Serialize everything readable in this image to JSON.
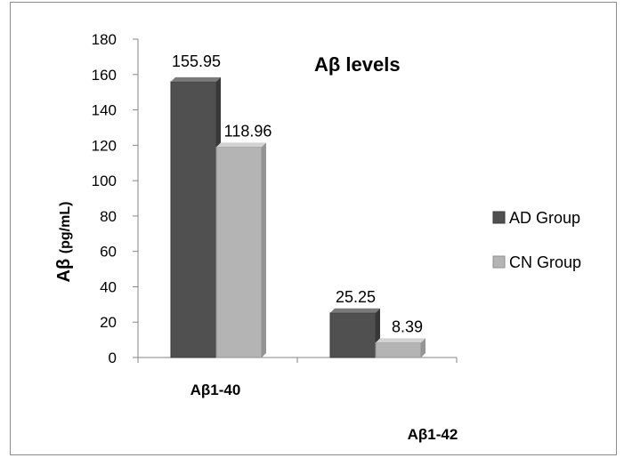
{
  "chart_data": {
    "type": "bar",
    "title": "Aβ levels",
    "ylabel_main": "Aβ",
    "ylabel_unit": "(pg/mL)",
    "xlabel": "",
    "categories": [
      "Aβ1-40",
      "Aβ1-42"
    ],
    "ylim": [
      0,
      180
    ],
    "yticks": [
      0,
      20,
      40,
      60,
      80,
      100,
      120,
      140,
      160,
      180
    ],
    "legend_position": "right",
    "series": [
      {
        "name": "AD Group",
        "values": [
          155.95,
          25.25
        ],
        "labels": [
          "155.95",
          "25.25"
        ],
        "color": "#505050"
      },
      {
        "name": "CN Group",
        "values": [
          118.96,
          8.39
        ],
        "labels": [
          "118.96",
          "8.39"
        ],
        "color": "#b4b4b4"
      }
    ]
  }
}
